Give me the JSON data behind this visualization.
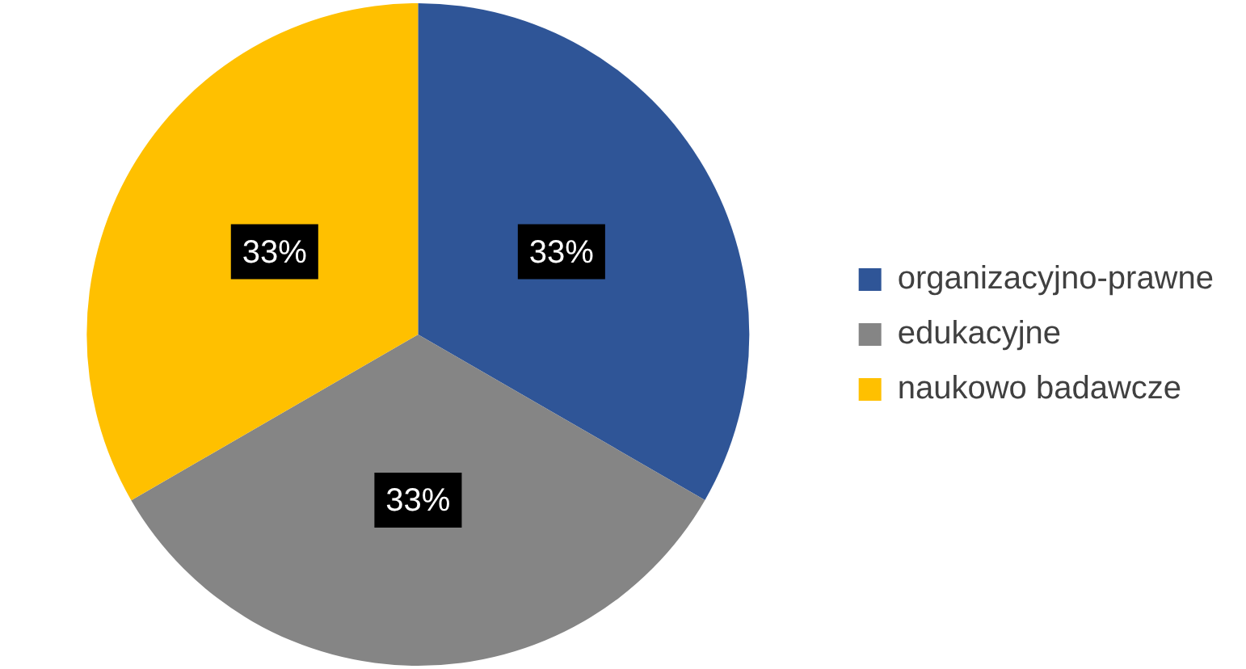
{
  "chart_data": {
    "type": "pie",
    "categories": [
      "organizacyjno-prawne",
      "edukacyjne",
      "naukowo badawcze"
    ],
    "values": [
      33.33,
      33.33,
      33.34
    ],
    "value_labels": [
      "33%",
      "33%",
      "33%"
    ],
    "colors": [
      "#2f5597",
      "#858585",
      "#ffc000"
    ],
    "legend": "right"
  }
}
